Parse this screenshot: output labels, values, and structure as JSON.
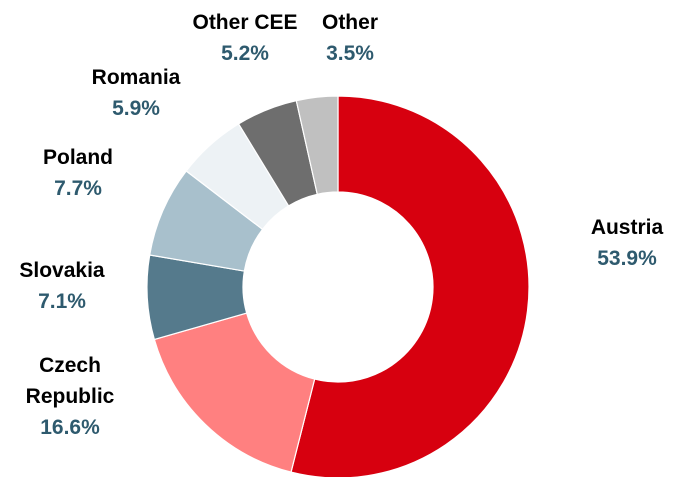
{
  "chart_data": {
    "type": "donut",
    "categories": [
      "Austria",
      "Czech Republic",
      "Slovakia",
      "Poland",
      "Romania",
      "Other CEE",
      "Other"
    ],
    "values": [
      53.9,
      16.6,
      7.1,
      7.7,
      5.9,
      5.2,
      3.5
    ],
    "value_labels": [
      "53.9%",
      "16.6%",
      "7.1%",
      "7.7%",
      "5.9%",
      "5.2%",
      "3.5%"
    ],
    "colors": [
      "#d7000f",
      "#ff8080",
      "#557a8c",
      "#a8c0cc",
      "#edf2f5",
      "#6e6e6e",
      "#c0c0c0"
    ]
  }
}
